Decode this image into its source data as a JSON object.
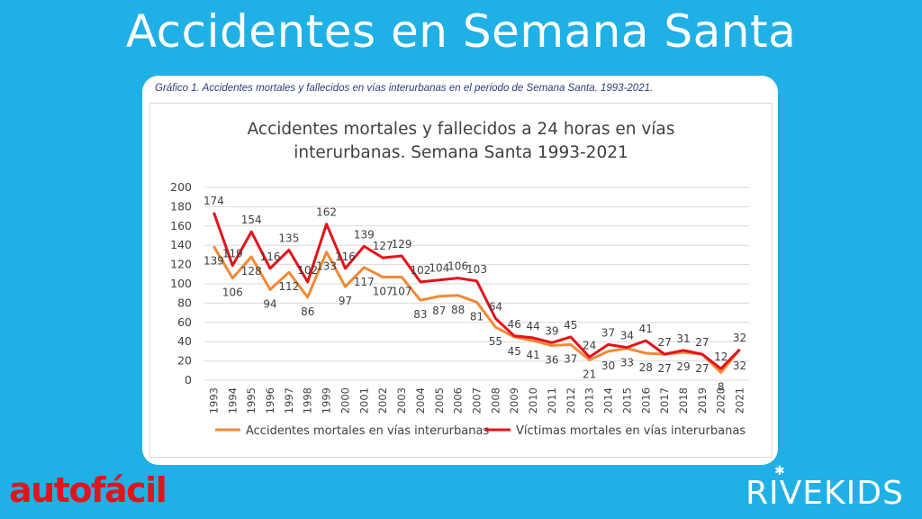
{
  "page": {
    "title": "Accidentes en Semana Santa",
    "caption": "Gráfico 1. Accidentes mortales y fallecidos en vías interurbanas en el periodo de Semana Santa. 1993-2021.",
    "brand_left": "autofácil",
    "brand_right": "RIVEKIDS"
  },
  "chart_data": {
    "type": "line",
    "title_lines": [
      "Accidentes mortales y fallecidos a 24 horas en vías",
      "interurbanas. Semana Santa 1993-2021"
    ],
    "x": [
      "1993",
      "1994",
      "1995",
      "1996",
      "1997",
      "1998",
      "1999",
      "2000",
      "2001",
      "2002",
      "2003",
      "2004",
      "2005",
      "2006",
      "2007",
      "2008",
      "2009",
      "2010",
      "2011",
      "2012",
      "2013",
      "2014",
      "2015",
      "2016",
      "2017",
      "2018",
      "2019",
      "2020",
      "2021"
    ],
    "ylim": [
      0,
      200
    ],
    "yticks": [
      "0",
      "20",
      "40",
      "60",
      "80",
      "100",
      "120",
      "140",
      "160",
      "180",
      "200"
    ],
    "grid": true,
    "legend_position": "bottom",
    "series": [
      {
        "name": "Accidentes mortales en vías interurbanas",
        "color": "#f08a36",
        "values": [
          139,
          106,
          128,
          94,
          112,
          86,
          133,
          97,
          117,
          107,
          107,
          83,
          87,
          88,
          81,
          55,
          45,
          41,
          36,
          37,
          21,
          30,
          33,
          28,
          27,
          29,
          27,
          8,
          32
        ]
      },
      {
        "name": "Víctimas mortales en vías interurbanas",
        "color": "#e3131b",
        "values": [
          174,
          119,
          154,
          116,
          135,
          102,
          162,
          116,
          139,
          127,
          129,
          102,
          104,
          106,
          103,
          64,
          46,
          44,
          39,
          45,
          24,
          37,
          34,
          41,
          27,
          31,
          27,
          12,
          32
        ]
      }
    ]
  }
}
